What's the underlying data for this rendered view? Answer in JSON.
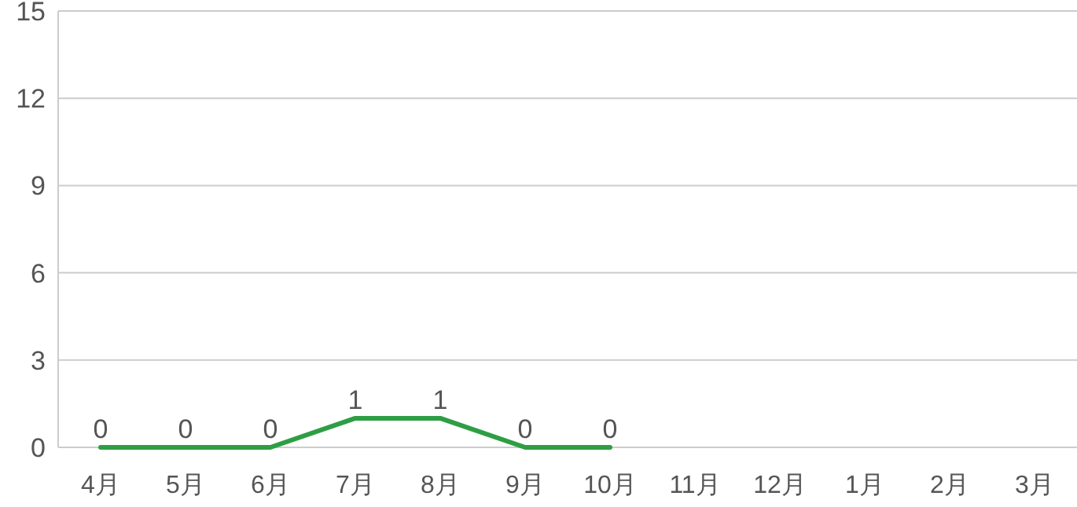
{
  "chart_data": {
    "type": "line",
    "categories": [
      "4月",
      "5月",
      "6月",
      "7月",
      "8月",
      "9月",
      "10月",
      "11月",
      "12月",
      "1月",
      "2月",
      "3月"
    ],
    "values": [
      0,
      0,
      0,
      1,
      1,
      0,
      0,
      null,
      null,
      null,
      null,
      null
    ],
    "color": "#2e9e44",
    "ylim": [
      0,
      15
    ],
    "yticks": [
      0,
      3,
      6,
      9,
      12,
      15
    ],
    "grid": "y",
    "data_labels": true
  }
}
